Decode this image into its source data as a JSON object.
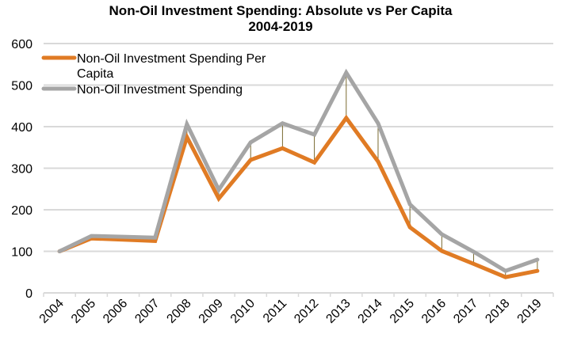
{
  "chart_data": {
    "type": "line",
    "title": "Non-Oil Investment Spending: Absolute vs Per Capita",
    "subtitle": "2004-2019",
    "xlabel": "",
    "ylabel": "",
    "ylim": [
      0,
      600
    ],
    "yticks": [
      0,
      100,
      200,
      300,
      400,
      500,
      600
    ],
    "ytick_labels": [
      "0",
      "100",
      "200",
      "300",
      "400",
      "500",
      "600"
    ],
    "grid": true,
    "legend_position": "top-left",
    "high_low_lines": true,
    "categories": [
      "2004",
      "2005",
      "2006",
      "2007",
      "2008",
      "2009",
      "2010",
      "2011",
      "2012",
      "2013",
      "2014",
      "2015",
      "2016",
      "2017",
      "2018",
      "2019"
    ],
    "series": [
      {
        "name": "Non-Oil Investment Spending Per Capita",
        "legend_lines": [
          "Non-Oil Investment Spending Per",
          "Capita"
        ],
        "color": "#E07B24",
        "values": [
          100,
          131,
          128,
          125,
          375,
          227,
          320,
          348,
          314,
          421,
          316,
          158,
          101,
          70,
          38,
          53
        ]
      },
      {
        "name": "Non-Oil Investment Spending",
        "legend_lines": [
          "Non-Oil Investment Spending"
        ],
        "color": "#A5A5A5",
        "values": [
          100,
          137,
          135,
          133,
          406,
          248,
          362,
          408,
          381,
          530,
          408,
          213,
          141,
          99,
          53,
          80
        ]
      }
    ],
    "high_low_line_color": "#7A6A30",
    "gridline_color": "#D9D9D9"
  }
}
